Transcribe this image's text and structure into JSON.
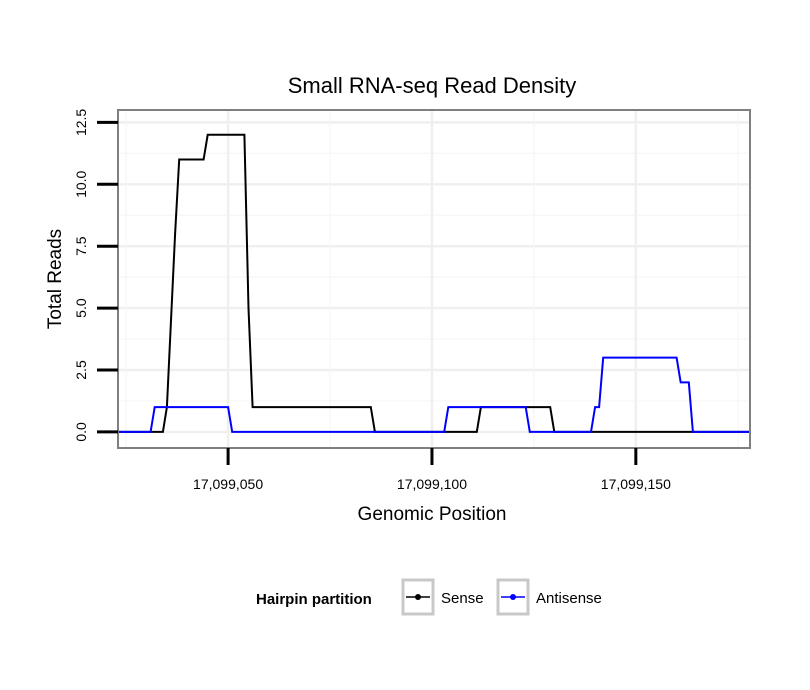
{
  "chart_data": {
    "type": "line",
    "title": "Small RNA-seq Read Density",
    "xlabel": "Genomic Position",
    "ylabel": "Total Reads",
    "xlim": [
      17099023,
      17099178
    ],
    "ylim": [
      -0.65,
      13
    ],
    "x_ticks": [
      17099050,
      17099100,
      17099150
    ],
    "x_tick_labels": [
      "17,099,050",
      "17,099,100",
      "17,099,150"
    ],
    "y_ticks": [
      0,
      2.5,
      5,
      7.5,
      10,
      12.5
    ],
    "y_tick_labels": [
      "0.0",
      "2.5",
      "5.0",
      "7.5",
      "10.0",
      "12.5"
    ],
    "grid": true,
    "legend": {
      "title": "Hairpin partition",
      "position": "bottom"
    },
    "series": [
      {
        "name": "Sense",
        "color": "#000000",
        "x": [
          17099023,
          17099034,
          17099035,
          17099037,
          17099038,
          17099044,
          17099045,
          17099054,
          17099055,
          17099056,
          17099085,
          17099086,
          17099111,
          17099112,
          17099124,
          17099125,
          17099129,
          17099130,
          17099178
        ],
        "y": [
          0,
          0,
          1,
          8,
          11,
          11,
          12,
          12,
          5,
          1,
          1,
          0,
          0,
          1,
          1,
          1,
          1,
          0,
          0
        ]
      },
      {
        "name": "Antisense",
        "color": "#0000ff",
        "x": [
          17099023,
          17099031,
          17099032,
          17099050,
          17099051,
          17099103,
          17099104,
          17099123,
          17099124,
          17099139,
          17099140,
          17099141,
          17099142,
          17099152,
          17099160,
          17099161,
          17099163,
          17099164,
          17099178
        ],
        "y": [
          0,
          0,
          1,
          1,
          0,
          0,
          1,
          1,
          0,
          0,
          1,
          1,
          3,
          3,
          3,
          2,
          2,
          0,
          0
        ]
      }
    ]
  }
}
